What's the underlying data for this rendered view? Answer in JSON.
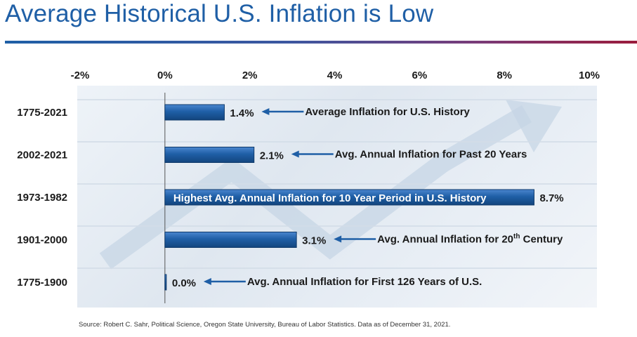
{
  "title": "Average Historical U.S. Inflation is Low",
  "source": "Source: Robert C. Sahr, Political Science, Oregon State University, Bureau of Labor Statistics. Data as of December 31, 2021.",
  "colors": {
    "title": "#1f5fa6",
    "bar": "#1f5fa6",
    "arrow": "#1f5fa6"
  },
  "chart_data": {
    "type": "bar",
    "orientation": "horizontal",
    "title": "Average Historical U.S. Inflation is Low",
    "xlim": [
      -2,
      10
    ],
    "xticks": [
      "-2%",
      "0%",
      "2%",
      "4%",
      "6%",
      "8%",
      "10%"
    ],
    "xtick_values": [
      -2,
      0,
      2,
      4,
      6,
      8,
      10
    ],
    "axis_position": "top",
    "grid": false,
    "categories": [
      "1775-2021",
      "2002-2021",
      "1973-1982",
      "1901-2000",
      "1775-1900"
    ],
    "values": [
      1.4,
      2.1,
      8.7,
      3.1,
      0.0
    ],
    "data_labels": [
      "1.4%",
      "2.1%",
      "8.7%",
      "3.1%",
      "0.0%"
    ],
    "annotations": [
      {
        "text": "Average Inflation for U.S. History",
        "placement": "arrow"
      },
      {
        "text": "Avg. Annual Inflation for Past 20 Years",
        "placement": "arrow"
      },
      {
        "text": "Highest Avg. Annual Inflation for 10 Year Period in U.S. History",
        "placement": "inside-bar"
      },
      {
        "text": "Avg. Annual Inflation for 20",
        "superscript": "th",
        "text_after": " Century",
        "placement": "arrow"
      },
      {
        "text": "Avg. Annual Inflation for First 126 Years of U.S.",
        "placement": "arrow"
      }
    ]
  }
}
